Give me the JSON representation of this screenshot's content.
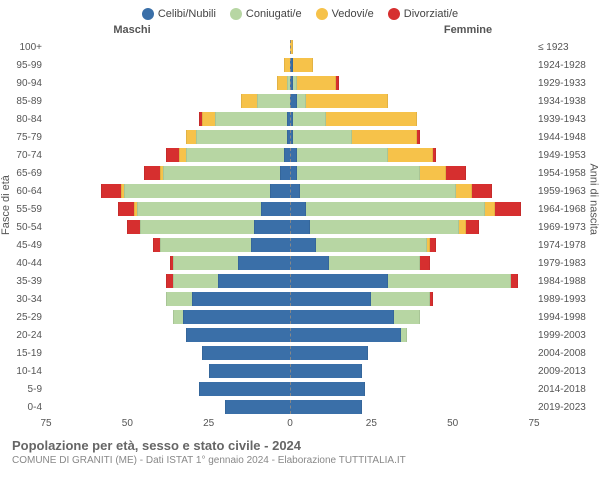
{
  "legend": {
    "items": [
      {
        "label": "Celibi/Nubili",
        "color": "#3a6fa8"
      },
      {
        "label": "Coniugati/e",
        "color": "#b7d6a3"
      },
      {
        "label": "Vedovi/e",
        "color": "#f6c24a"
      },
      {
        "label": "Divorziati/e",
        "color": "#d62f2f"
      }
    ]
  },
  "gender": {
    "left": "Maschi",
    "right": "Femmine"
  },
  "axis": {
    "left_label": "Fasce di età",
    "right_label": "Anni di nascita",
    "x_ticks": [
      75,
      50,
      25,
      0,
      25,
      50,
      75
    ],
    "x_max": 75
  },
  "colors": {
    "celibi": "#3a6fa8",
    "coniugati": "#b7d6a3",
    "vedovi": "#f6c24a",
    "divorziati": "#d62f2f",
    "grid": "#eaeaea",
    "center": "#888888",
    "bg": "#ffffff"
  },
  "rows": [
    {
      "age": "100+",
      "year": "≤ 1923",
      "m": [
        0,
        0,
        0,
        0
      ],
      "f": [
        0,
        0,
        1,
        0
      ]
    },
    {
      "age": "95-99",
      "year": "1924-1928",
      "m": [
        0,
        0,
        2,
        0
      ],
      "f": [
        1,
        0,
        6,
        0
      ]
    },
    {
      "age": "90-94",
      "year": "1929-1933",
      "m": [
        0,
        1,
        3,
        0
      ],
      "f": [
        1,
        1,
        12,
        1
      ]
    },
    {
      "age": "85-89",
      "year": "1934-1938",
      "m": [
        0,
        10,
        5,
        0
      ],
      "f": [
        2,
        3,
        25,
        0
      ]
    },
    {
      "age": "80-84",
      "year": "1939-1943",
      "m": [
        1,
        22,
        4,
        1
      ],
      "f": [
        1,
        10,
        28,
        0
      ]
    },
    {
      "age": "75-79",
      "year": "1944-1948",
      "m": [
        1,
        28,
        3,
        0
      ],
      "f": [
        1,
        18,
        20,
        1
      ]
    },
    {
      "age": "70-74",
      "year": "1949-1953",
      "m": [
        2,
        30,
        2,
        4
      ],
      "f": [
        2,
        28,
        14,
        1
      ]
    },
    {
      "age": "65-69",
      "year": "1954-1958",
      "m": [
        3,
        36,
        1,
        5
      ],
      "f": [
        2,
        38,
        8,
        6
      ]
    },
    {
      "age": "60-64",
      "year": "1959-1963",
      "m": [
        6,
        45,
        1,
        6
      ],
      "f": [
        3,
        48,
        5,
        6
      ]
    },
    {
      "age": "55-59",
      "year": "1964-1968",
      "m": [
        9,
        38,
        1,
        5
      ],
      "f": [
        5,
        55,
        3,
        8
      ]
    },
    {
      "age": "50-54",
      "year": "1969-1973",
      "m": [
        11,
        35,
        0,
        4
      ],
      "f": [
        6,
        46,
        2,
        4
      ]
    },
    {
      "age": "45-49",
      "year": "1974-1978",
      "m": [
        12,
        28,
        0,
        2
      ],
      "f": [
        8,
        34,
        1,
        2
      ]
    },
    {
      "age": "40-44",
      "year": "1979-1983",
      "m": [
        16,
        20,
        0,
        1
      ],
      "f": [
        12,
        28,
        0,
        3
      ]
    },
    {
      "age": "35-39",
      "year": "1984-1988",
      "m": [
        22,
        14,
        0,
        2
      ],
      "f": [
        30,
        38,
        0,
        2
      ]
    },
    {
      "age": "30-34",
      "year": "1989-1993",
      "m": [
        30,
        8,
        0,
        0
      ],
      "f": [
        25,
        18,
        0,
        1
      ]
    },
    {
      "age": "25-29",
      "year": "1994-1998",
      "m": [
        33,
        3,
        0,
        0
      ],
      "f": [
        32,
        8,
        0,
        0
      ]
    },
    {
      "age": "20-24",
      "year": "1999-2003",
      "m": [
        32,
        0,
        0,
        0
      ],
      "f": [
        34,
        2,
        0,
        0
      ]
    },
    {
      "age": "15-19",
      "year": "2004-2008",
      "m": [
        27,
        0,
        0,
        0
      ],
      "f": [
        24,
        0,
        0,
        0
      ]
    },
    {
      "age": "10-14",
      "year": "2009-2013",
      "m": [
        25,
        0,
        0,
        0
      ],
      "f": [
        22,
        0,
        0,
        0
      ]
    },
    {
      "age": "5-9",
      "year": "2014-2018",
      "m": [
        28,
        0,
        0,
        0
      ],
      "f": [
        23,
        0,
        0,
        0
      ]
    },
    {
      "age": "0-4",
      "year": "2019-2023",
      "m": [
        20,
        0,
        0,
        0
      ],
      "f": [
        22,
        0,
        0,
        0
      ]
    }
  ],
  "footer": {
    "title": "Popolazione per età, sesso e stato civile - 2024",
    "subtitle": "COMUNE DI GRANITI (ME) - Dati ISTAT 1° gennaio 2024 - Elaborazione TUTTITALIA.IT"
  }
}
